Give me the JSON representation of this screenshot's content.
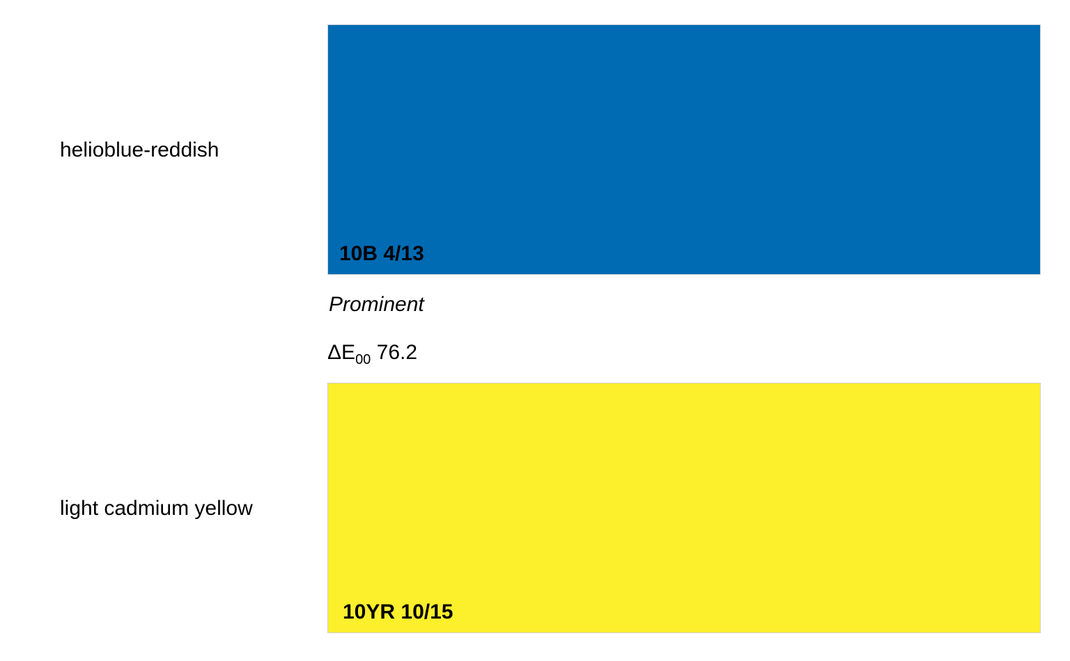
{
  "colors": [
    {
      "name": "helioblue-reddish",
      "munsell": "10B 4/13",
      "hex": "#006bb3"
    },
    {
      "name": "light cadmium yellow",
      "munsell": "10YR 10/15",
      "hex": "#fcef2c"
    }
  ],
  "comparison": {
    "verdict": "Prominent",
    "metric_symbol": "ΔE",
    "metric_subscript": "00",
    "value": "76.2"
  }
}
